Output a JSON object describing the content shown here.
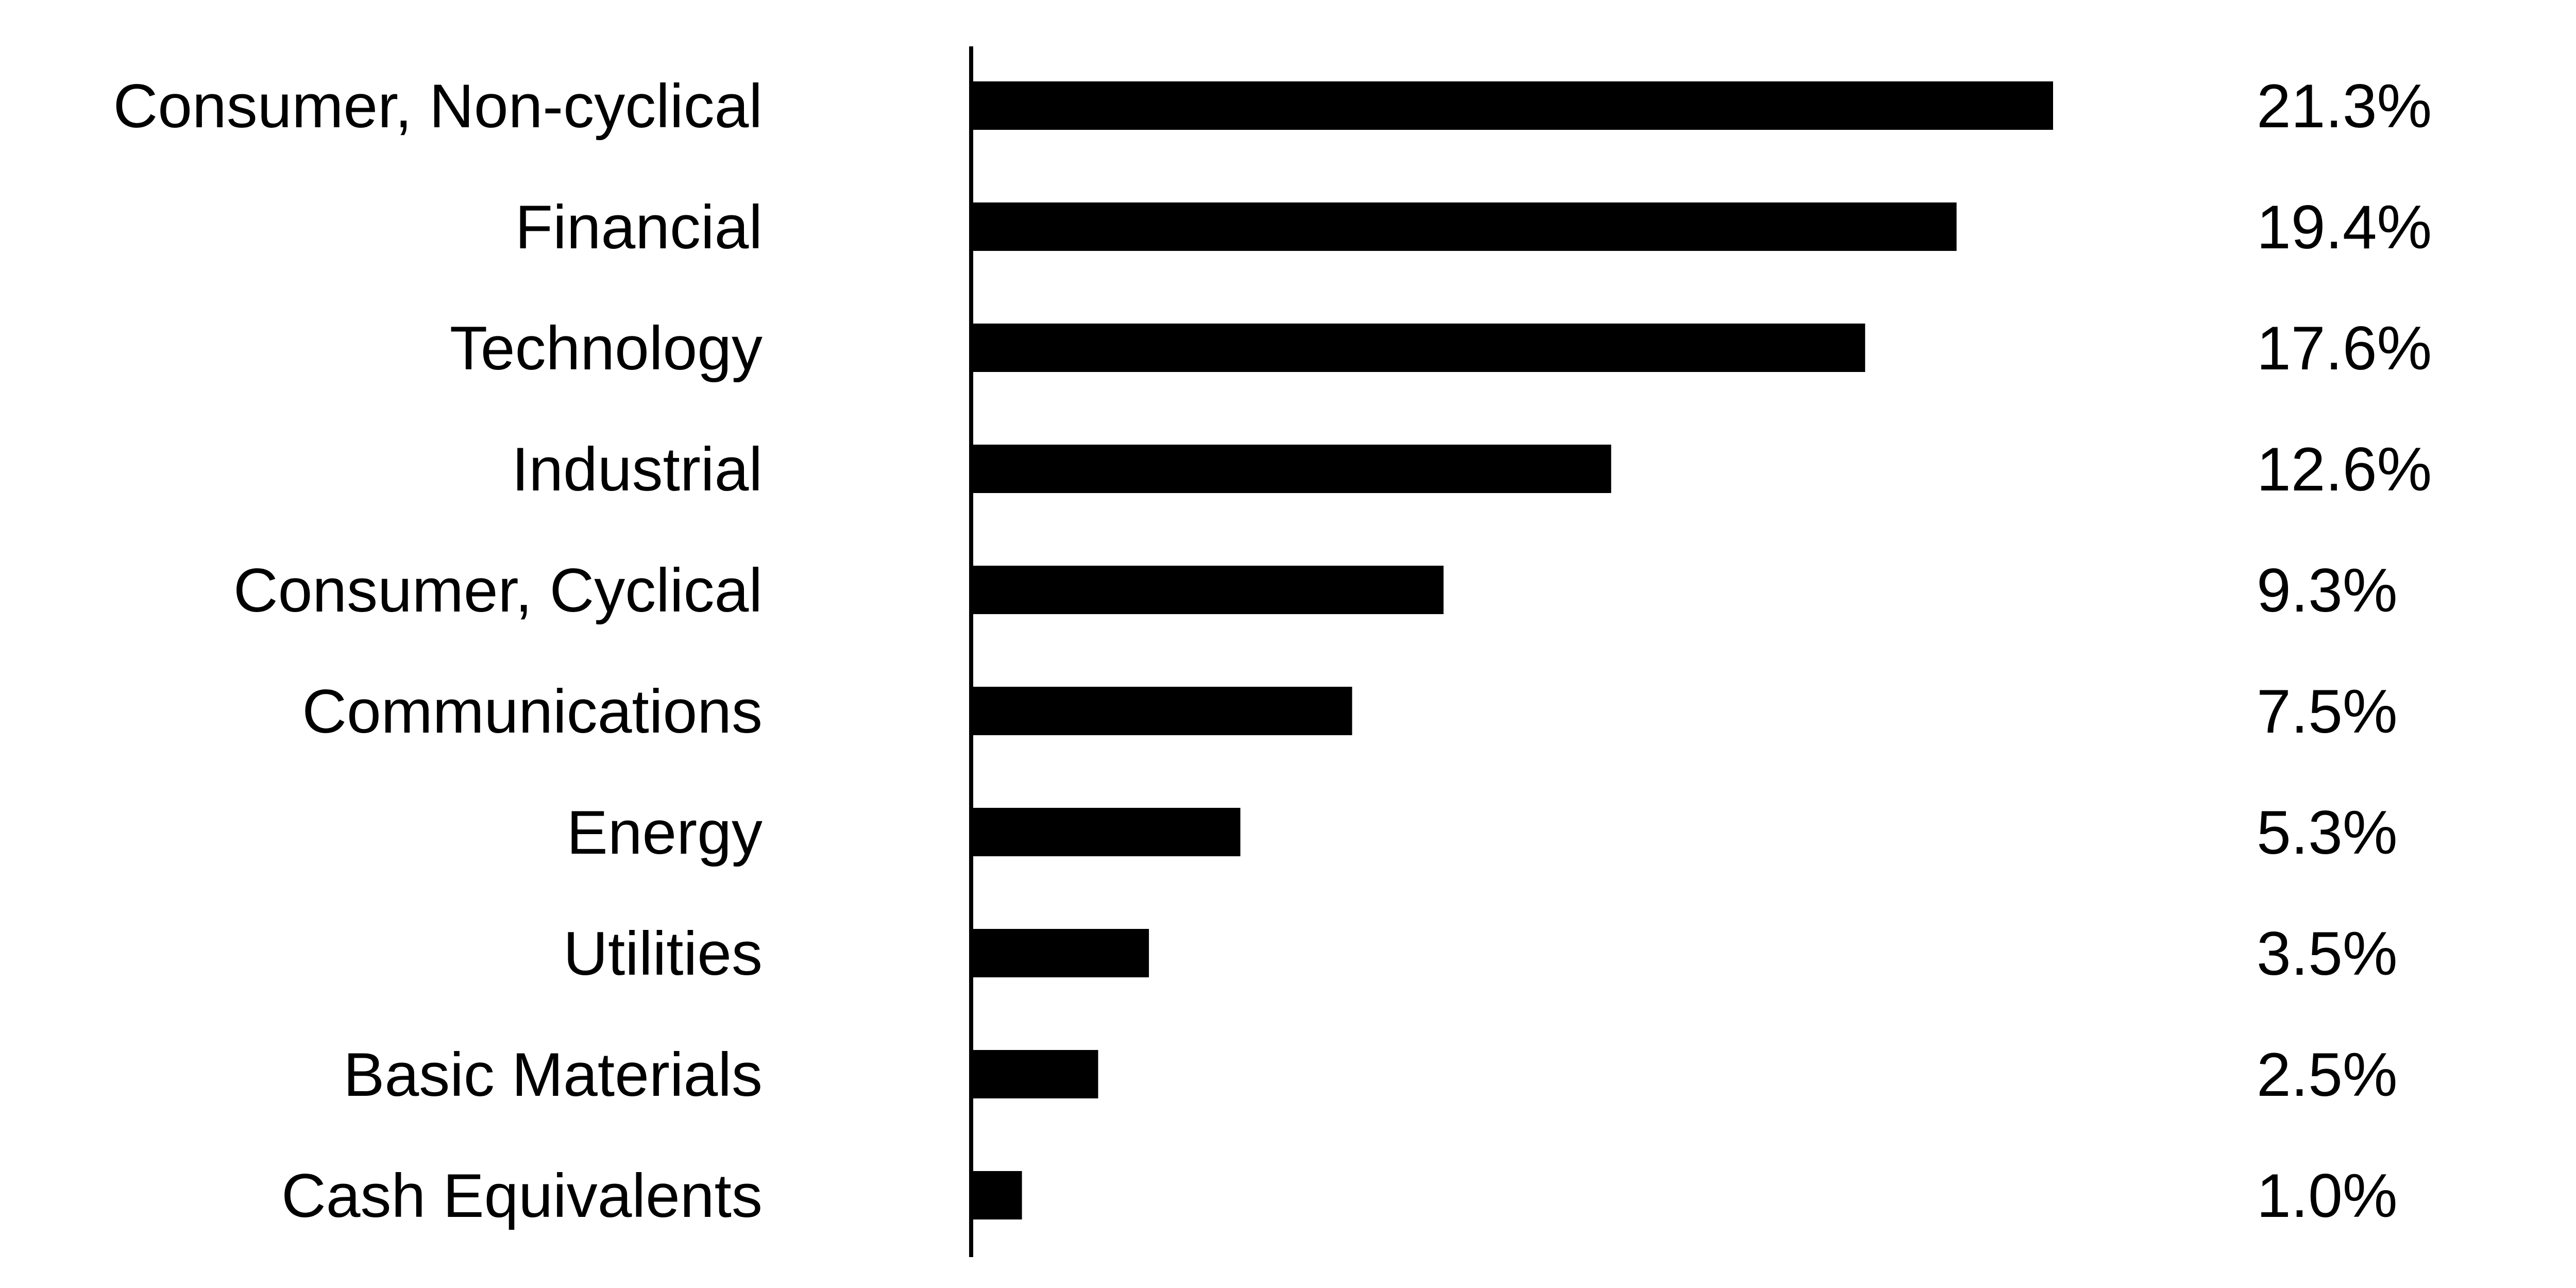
{
  "chart_data": {
    "type": "bar",
    "orientation": "horizontal",
    "categories": [
      "Consumer, Non-cyclical",
      "Financial",
      "Technology",
      "Industrial",
      "Consumer, Cyclical",
      "Communications",
      "Energy",
      "Utilities",
      "Basic Materials",
      "Cash Equivalents"
    ],
    "values": [
      21.3,
      19.4,
      17.6,
      12.6,
      9.3,
      7.5,
      5.3,
      3.5,
      2.5,
      1.0
    ],
    "value_labels": [
      "21.3%",
      "19.4%",
      "17.6%",
      "12.6%",
      "9.3%",
      "7.5%",
      "5.3%",
      "3.5%",
      "2.5%",
      "1.0%"
    ],
    "title": "",
    "xlabel": "",
    "ylabel": "",
    "xlim": [
      0,
      21.3
    ],
    "grid": false,
    "legend": "none",
    "colors": {
      "bar": "#000000",
      "axis": "#000000",
      "text": "#000000",
      "background": "#ffffff"
    }
  }
}
